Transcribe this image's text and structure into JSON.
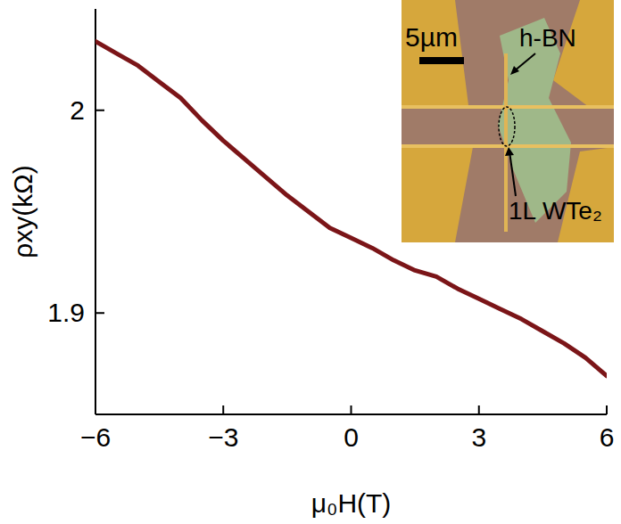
{
  "chart_data": {
    "type": "line",
    "x_label": "μ₀H(T)",
    "y_label": "ρxy(kΩ)",
    "annotations": [
      "5µm",
      "h-BN",
      "1L WTe₂"
    ],
    "x": [
      -6,
      -5.5,
      -5,
      -4.5,
      -4,
      -3.5,
      -3,
      -2.5,
      -2,
      -1.5,
      -1,
      -0.5,
      0,
      0.5,
      1,
      1.5,
      2,
      2.5,
      3,
      3.5,
      4,
      4.5,
      5,
      5.5,
      6
    ],
    "values": [
      2.034,
      2.028,
      2.022,
      2.014,
      2.006,
      1.995,
      1.985,
      1.976,
      1.967,
      1.958,
      1.95,
      1.942,
      1.937,
      1.932,
      1.926,
      1.921,
      1.918,
      1.912,
      1.907,
      1.902,
      1.897,
      1.891,
      1.885,
      1.878,
      1.869
    ],
    "color": "#7b1518",
    "xlim": [
      -6,
      6
    ],
    "xticks": [
      -6,
      -3,
      0,
      3,
      6
    ],
    "ylim": [
      1.85,
      2.05
    ],
    "yticks": [
      1.9,
      2
    ],
    "grid": false
  }
}
